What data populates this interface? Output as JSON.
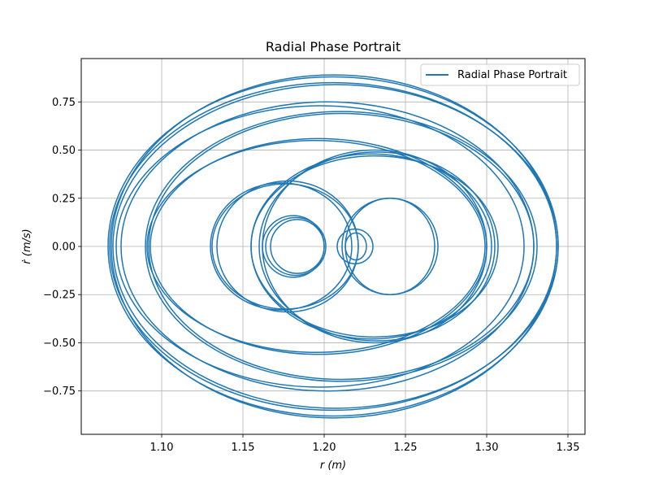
{
  "chart_data": {
    "type": "line",
    "title": "Radial Phase Portrait",
    "xlabel": "r (m)",
    "ylabel": "ṙ (m/s)",
    "xlim": [
      1.0505,
      1.3605
    ],
    "ylim": [
      -0.975,
      0.975
    ],
    "xticks": [
      1.1,
      1.15,
      1.2,
      1.25,
      1.3,
      1.35
    ],
    "xtick_labels": [
      "1.10",
      "1.15",
      "1.20",
      "1.25",
      "1.30",
      "1.35"
    ],
    "yticks": [
      -0.75,
      -0.5,
      -0.25,
      0.0,
      0.25,
      0.5,
      0.75
    ],
    "ytick_labels": [
      "−0.75",
      "−0.50",
      "−0.25",
      "0.00",
      "0.25",
      "0.50",
      "0.75"
    ],
    "grid": true,
    "legend": {
      "position": "top-right",
      "entries": [
        "Radial Phase Portrait"
      ]
    },
    "series": [
      {
        "name": "Radial Phase Portrait",
        "color": "#1f77b4",
        "loops": [
          {
            "r_min": 1.167,
            "r_max": 1.2,
            "rdot_max": 0.14
          },
          {
            "r_min": 1.164,
            "r_max": 1.201,
            "rdot_max": 0.15
          },
          {
            "r_min": 1.162,
            "r_max": 1.2,
            "rdot_max": 0.16
          },
          {
            "r_min": 1.213,
            "r_max": 1.226,
            "rdot_max": 0.07
          },
          {
            "r_min": 1.208,
            "r_max": 1.23,
            "rdot_max": 0.09
          },
          {
            "r_min": 1.213,
            "r_max": 1.268,
            "rdot_max": 0.25
          },
          {
            "r_min": 1.211,
            "r_max": 1.27,
            "rdot_max": 0.25
          },
          {
            "r_min": 1.134,
            "r_max": 1.221,
            "rdot_max": 0.34
          },
          {
            "r_min": 1.13,
            "r_max": 1.217,
            "rdot_max": 0.33
          },
          {
            "r_min": 1.131,
            "r_max": 1.221,
            "rdot_max": 0.325
          },
          {
            "r_min": 1.093,
            "r_max": 1.3,
            "rdot_max": 0.56
          },
          {
            "r_min": 1.091,
            "r_max": 1.299,
            "rdot_max": 0.55
          },
          {
            "r_min": 1.162,
            "r_max": 1.3,
            "rdot_max": 0.5
          },
          {
            "r_min": 1.16,
            "r_max": 1.305,
            "rdot_max": 0.49
          },
          {
            "r_min": 1.155,
            "r_max": 1.303,
            "rdot_max": 0.48
          },
          {
            "r_min": 1.155,
            "r_max": 1.307,
            "rdot_max": 0.47
          },
          {
            "r_min": 1.072,
            "r_max": 1.323,
            "rdot_max": 0.73
          },
          {
            "r_min": 1.075,
            "r_max": 1.329,
            "rdot_max": 0.75
          },
          {
            "r_min": 1.09,
            "r_max": 1.331,
            "rdot_max": 0.7
          },
          {
            "r_min": 1.092,
            "r_max": 1.329,
            "rdot_max": 0.69
          },
          {
            "r_min": 1.068,
            "r_max": 1.343,
            "rdot_max": 0.85
          },
          {
            "r_min": 1.07,
            "r_max": 1.344,
            "rdot_max": 0.84
          },
          {
            "r_min": 1.069,
            "r_max": 1.343,
            "rdot_max": 0.89
          },
          {
            "r_min": 1.067,
            "r_max": 1.344,
            "rdot_max": 0.88
          }
        ]
      }
    ]
  }
}
